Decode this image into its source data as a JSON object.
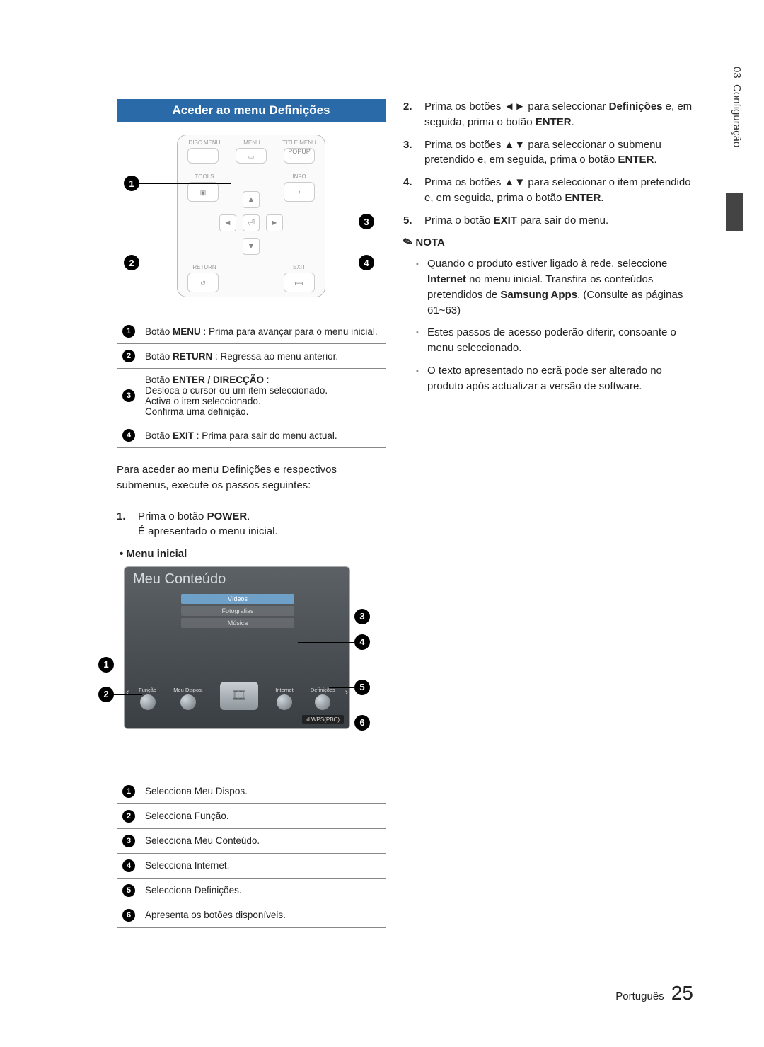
{
  "sidebar": {
    "chapter_num": "03",
    "chapter_label": "Configuração"
  },
  "section_title": "Aceder ao menu Definições",
  "remote": {
    "disc_menu": "DISC MENU",
    "menu": "MENU",
    "title_menu": "TITLE MENU",
    "popup": "POPUP",
    "tools": "TOOLS",
    "info": "INFO",
    "return": "RETURN",
    "exit": "EXIT"
  },
  "remote_table": [
    {
      "n": "1",
      "text_prefix": "Botão ",
      "bold": "MENU",
      "text_suffix": " : Prima para avançar para o menu inicial."
    },
    {
      "n": "2",
      "text_prefix": "Botão ",
      "bold": "RETURN",
      "text_suffix": " : Regressa ao menu anterior."
    },
    {
      "n": "3",
      "text_prefix": "Botão ",
      "bold": "ENTER / DIRECÇÃO",
      "text_suffix": " :",
      "lines": [
        "Desloca o cursor ou um item seleccionado.",
        "Activa o item seleccionado.",
        "Confirma uma definição."
      ]
    },
    {
      "n": "4",
      "text_prefix": "Botão ",
      "bold": "EXIT",
      "text_suffix": " : Prima para sair do menu actual."
    }
  ],
  "left_paragraph": "Para aceder ao menu Definições e respectivos submenus, execute os passos seguintes:",
  "left_step1_a": "Prima o botão ",
  "left_step1_bold": "POWER",
  "left_step1_b": ".",
  "left_step1_c": "É apresentado o menu inicial.",
  "menu_label": "Menu inicial",
  "menu_screen": {
    "title": "Meu Conteúdo",
    "tabs": [
      "Vídeos",
      "Fotografias",
      "Música"
    ],
    "icons": {
      "funcao": "Função",
      "meudispos": "Meu Dispos.",
      "internet": "Internet",
      "definicoes": "Definições"
    },
    "footer": "d WPS(PBC)"
  },
  "menu_table": [
    {
      "n": "1",
      "text": "Selecciona Meu Dispos."
    },
    {
      "n": "2",
      "text": "Selecciona Função."
    },
    {
      "n": "3",
      "text": "Selecciona Meu Conteúdo."
    },
    {
      "n": "4",
      "text": "Selecciona Internet."
    },
    {
      "n": "5",
      "text": "Selecciona Definições."
    },
    {
      "n": "6",
      "text": "Apresenta os botões disponíveis."
    }
  ],
  "right_steps": [
    {
      "n": "2.",
      "pre": "Prima os botões ◄► para seleccionar ",
      "bold": "Definições",
      "post": " e, em seguida, prima o botão ",
      "bold2": "ENTER",
      "post2": "."
    },
    {
      "n": "3.",
      "pre": "Prima os botões ▲▼ para seleccionar o submenu pretendido e, em seguida, prima o botão ",
      "bold": "ENTER",
      "post": "."
    },
    {
      "n": "4.",
      "pre": "Prima os botões ▲▼ para seleccionar o item pretendido e, em seguida, prima o botão ",
      "bold": "ENTER",
      "post": "."
    },
    {
      "n": "5.",
      "pre": "Prima o botão ",
      "bold": "EXIT",
      "post": " para sair do menu."
    }
  ],
  "nota_label": "NOTA",
  "nota_items": [
    {
      "pre": "Quando o produto estiver ligado à rede, seleccione ",
      "bold": "Internet",
      "mid": " no menu inicial. Transfira os conteúdos pretendidos de ",
      "bold2": "Samsung Apps",
      "post": ". (Consulte as páginas 61~63)"
    },
    {
      "pre": "Estes passos de acesso poderão diferir, consoante o menu seleccionado."
    },
    {
      "pre": "O texto apresentado no ecrã pode ser alterado no produto após actualizar a versão de software."
    }
  ],
  "footer": {
    "lang": "Português",
    "page": "25"
  }
}
